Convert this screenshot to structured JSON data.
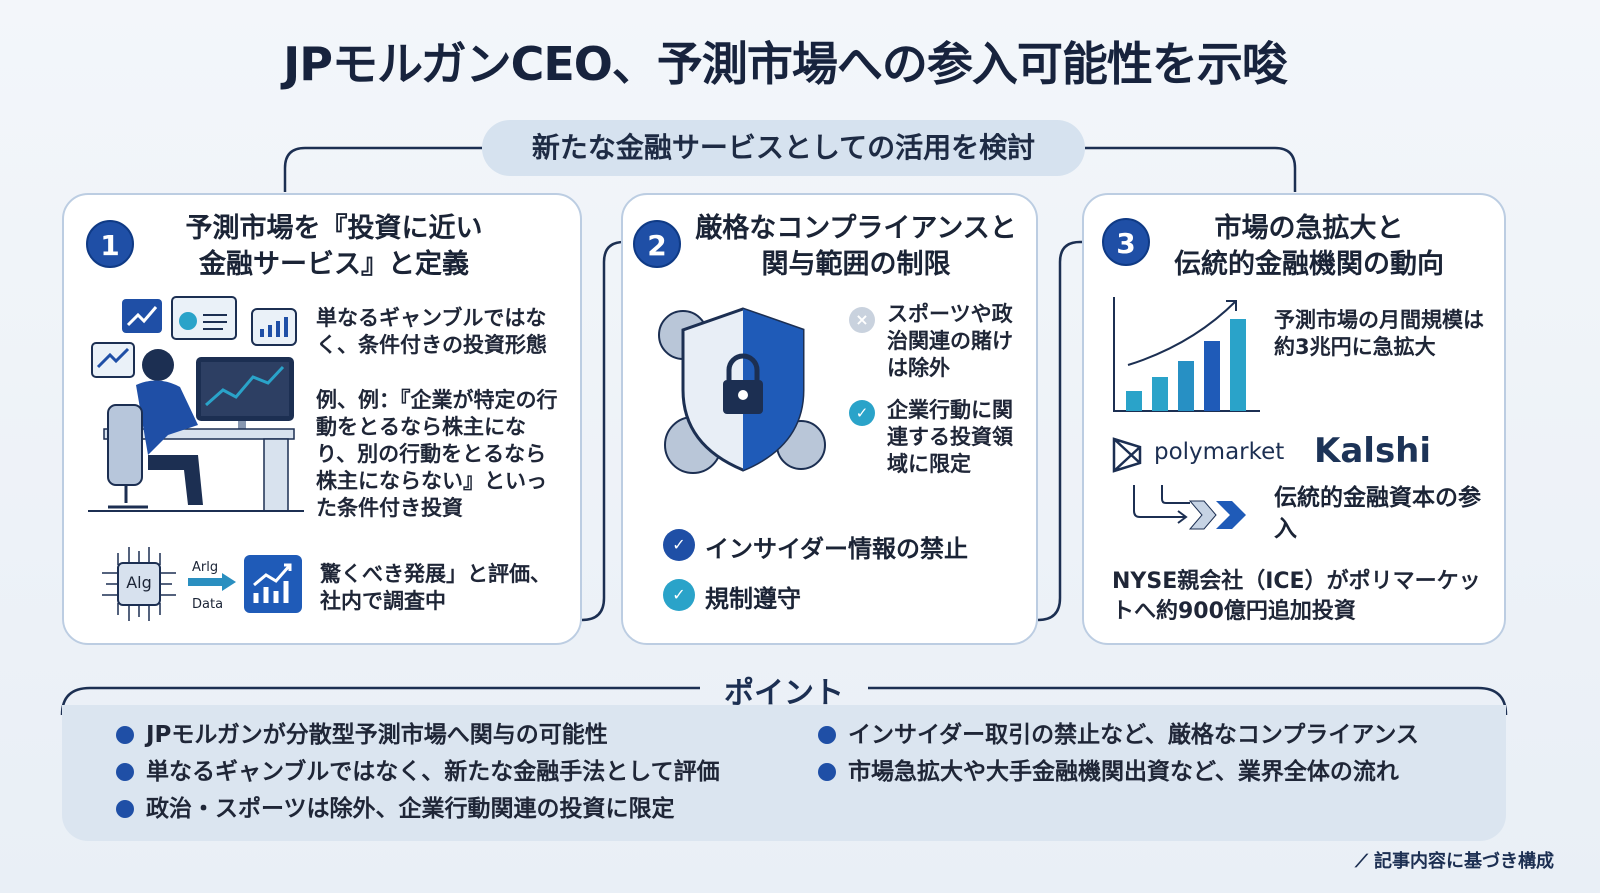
{
  "title": "JPモルガンCEO、予測市場への参入可能性を示唆",
  "subtitle": "新たな金融サービスとしての活用を検討",
  "cards": [
    {
      "number": "1",
      "heading_line1": "予測市場を『投資に近い",
      "heading_line2": "金融サービス』と定義",
      "text1": "単なるギャンブルではなく、条件付きの投資形態",
      "text2": "例、例：『企業が特定の行動をとるなら株主になり、別の行動をとるなら株主にならない』といった条件付き投資",
      "chip_label": "Alg",
      "arrow_top": "Arlg",
      "arrow_bottom": "Data",
      "text3": "驚くべき発展」と評価、社内で調査中"
    },
    {
      "number": "2",
      "heading_line1": "厳格なコンプライアンスと",
      "heading_line2": "関与範囲の制限",
      "excluded": "スポーツや政治関連の賭けは除外",
      "limited": "企業行動に関連する投資領域に限定",
      "checks": [
        "インサイダー情報の禁止",
        "規制遵守"
      ]
    },
    {
      "number": "3",
      "heading_line1": "市場の急拡大と",
      "heading_line2": "伝統的金融機関の動向",
      "growth_text": "予測市場の月間規模は約3兆円に急拡大",
      "logo_polymarket": "polymarket",
      "logo_kalshi": "Kalshi",
      "capital_text": "伝統的金融資本の参入",
      "nyse_text": "NYSE親会社（ICE）がポリマーケットへ約900億円追加投資"
    }
  ],
  "points": {
    "title": "ポイント",
    "items": [
      "JPモルガンが分散型予測市場へ関与の可能性",
      "単なるギャンブルではなく、新たな金融手法として評価",
      "政治・スポーツは除外、企業行動関連の投資に限定",
      "インサイダー取引の禁止など、厳格なコンプライアンス",
      "市場急拡大や大手金融機関出資など、業界全体の流れ"
    ]
  },
  "footer": "記事内容に基づき構成",
  "colors": {
    "accent": "#1f4fa6",
    "teal": "#2aa3c9",
    "card_border": "#bccde2",
    "points_bg": "#dbe5f0"
  }
}
